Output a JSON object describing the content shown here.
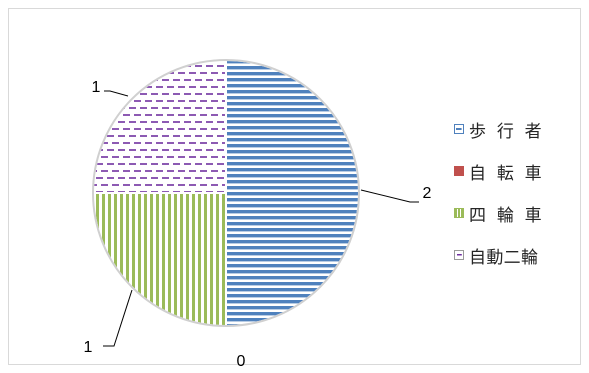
{
  "chart_data": {
    "type": "pie",
    "title": "",
    "categories": [
      "歩行者",
      "自転車",
      "四輪車",
      "自動二輪"
    ],
    "values": [
      2,
      0,
      1,
      1
    ],
    "data_labels": [
      "2",
      "0",
      "1",
      "1"
    ],
    "legend_labels": [
      "歩 行 者",
      "自 転 車",
      "四 輪 車",
      "自動二輪"
    ],
    "legend_placement": "right",
    "colors": [
      "#4f81bd",
      "#c0504d",
      "#9bbb59",
      "#7030a0"
    ],
    "patterns": [
      "horizontal-lines",
      "dots",
      "vertical-lines",
      "dashed-lines"
    ]
  }
}
